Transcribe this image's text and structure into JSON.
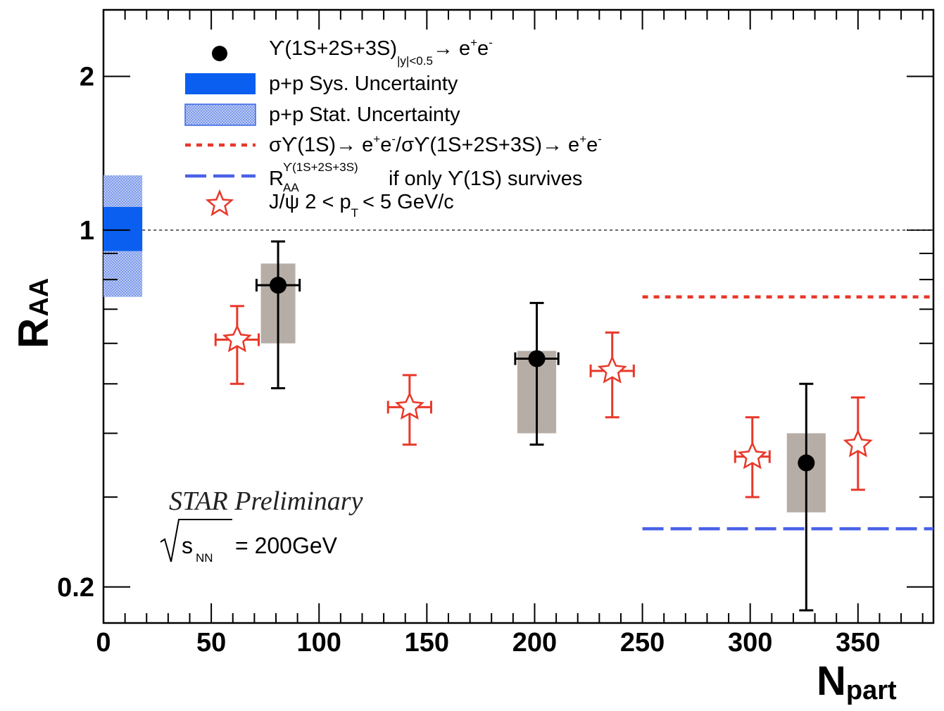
{
  "chart_data": {
    "type": "scatter",
    "xlabel": "N",
    "xlabel_sub": "part",
    "ylabel": "R",
    "ylabel_sub": "AA",
    "x_scale": "linear",
    "y_scale": "log",
    "xlim": [
      0,
      385
    ],
    "ylim": [
      0.17,
      2.7
    ],
    "x_ticks": [
      0,
      50,
      100,
      150,
      200,
      250,
      300,
      350
    ],
    "x_tick_labels": [
      "0",
      "50",
      "100",
      "150",
      "200",
      "250",
      "300",
      "350"
    ],
    "y_ticks": [
      0.2,
      1,
      2
    ],
    "y_tick_labels": [
      "0.2",
      "1",
      "2"
    ],
    "reference_line": {
      "y": 1,
      "style": "dotted"
    },
    "series": [
      {
        "name": "Upsilon(1S+2S+3S) |y|<0.5 -> e+e-",
        "marker": "circle",
        "color": "#000000",
        "points": [
          {
            "x": 81,
            "y": 0.78,
            "xerr": 10,
            "yerr_low": 0.29,
            "yerr_high": 0.17,
            "sys_low": 0.6,
            "sys_high": 0.86,
            "sys_halfwidth": 8
          },
          {
            "x": 201,
            "y": 0.56,
            "xerr": 10,
            "yerr_low": 0.18,
            "yerr_high": 0.16,
            "sys_low": 0.4,
            "sys_high": 0.58,
            "sys_halfwidth": 9
          },
          {
            "x": 326,
            "y": 0.35,
            "xerr": 0,
            "yerr_low": 0.17,
            "yerr_high": 0.15,
            "sys_low": 0.28,
            "sys_high": 0.4,
            "sys_halfwidth": 9
          }
        ]
      },
      {
        "name": "J/psi 2 < pT < 5 GeV/c",
        "marker": "open-star",
        "color": "#e8382a",
        "points": [
          {
            "x": 62,
            "y": 0.61,
            "xerr": 10,
            "yerr_low": 0.11,
            "yerr_high": 0.1
          },
          {
            "x": 142,
            "y": 0.45,
            "xerr": 10,
            "yerr_low": 0.07,
            "yerr_high": 0.07
          },
          {
            "x": 236,
            "y": 0.53,
            "xerr": 10,
            "yerr_low": 0.1,
            "yerr_high": 0.1
          },
          {
            "x": 301,
            "y": 0.36,
            "xerr": 8,
            "yerr_low": 0.06,
            "yerr_high": 0.07
          },
          {
            "x": 350,
            "y": 0.38,
            "xerr": 0,
            "yerr_low": 0.07,
            "yerr_high": 0.09
          }
        ]
      }
    ],
    "bands": [
      {
        "name": "p+p Sys. Uncertainty",
        "x_range": [
          0,
          18
        ],
        "y_range": [
          0.91,
          1.11
        ],
        "color": "#0a5ff0"
      },
      {
        "name": "p+p Stat. Uncertainty",
        "x_range": [
          0,
          18
        ],
        "y_range": [
          0.74,
          1.28
        ],
        "color": "#8aa8f0"
      }
    ],
    "lines": [
      {
        "name": "sigma Upsilon(1S)->e+e- / sigma Upsilon(1S+2S+3S)->e+e-",
        "x_range": [
          250,
          385
        ],
        "y": 0.74,
        "style": "dotted",
        "color": "#e8382a"
      },
      {
        "name": "RAA Upsilon(1S+2S+3S) if only Upsilon(1S) survives",
        "x_range": [
          250,
          385
        ],
        "y": 0.26,
        "style": "dashed",
        "color": "#4a62e8"
      }
    ],
    "legend": {
      "position": "top-left",
      "entries": [
        {
          "key": "upsilon",
          "parts": [
            "ϒ(1S+2S+3S)",
            "|y|<0.5",
            "→ e",
            "+",
            "e",
            "-"
          ]
        },
        {
          "key": "sys",
          "parts": [
            "p+p Sys. Uncertainty"
          ]
        },
        {
          "key": "stat",
          "parts": [
            "p+p Stat. Uncertainty"
          ]
        },
        {
          "key": "ratio",
          "parts": [
            "σϒ(1S)→ e",
            "+",
            "e",
            "-",
            "/σϒ(1S+2S+3S)→ e",
            "+",
            "e",
            "-"
          ]
        },
        {
          "key": "only1s",
          "parts": [
            "R",
            "ϒ(1S+2S+3S)",
            "AA",
            "if only ϒ(1S) survives"
          ]
        },
        {
          "key": "jpsi",
          "parts": [
            "J/ψ 2 < p",
            "T",
            "< 5 GeV/c"
          ]
        }
      ]
    },
    "annotations": {
      "preliminary": "STAR Preliminary",
      "energy_s": "s",
      "energy_sub": "NN",
      "energy_value": "= 200GeV"
    }
  },
  "colors": {
    "black": "#000000",
    "red": "#e8382a",
    "blue_sys": "#0a5ff0",
    "blue_stat": "#8aa8f0",
    "blue_dash": "#4a62e8",
    "sys_box": "#b5ada6"
  }
}
